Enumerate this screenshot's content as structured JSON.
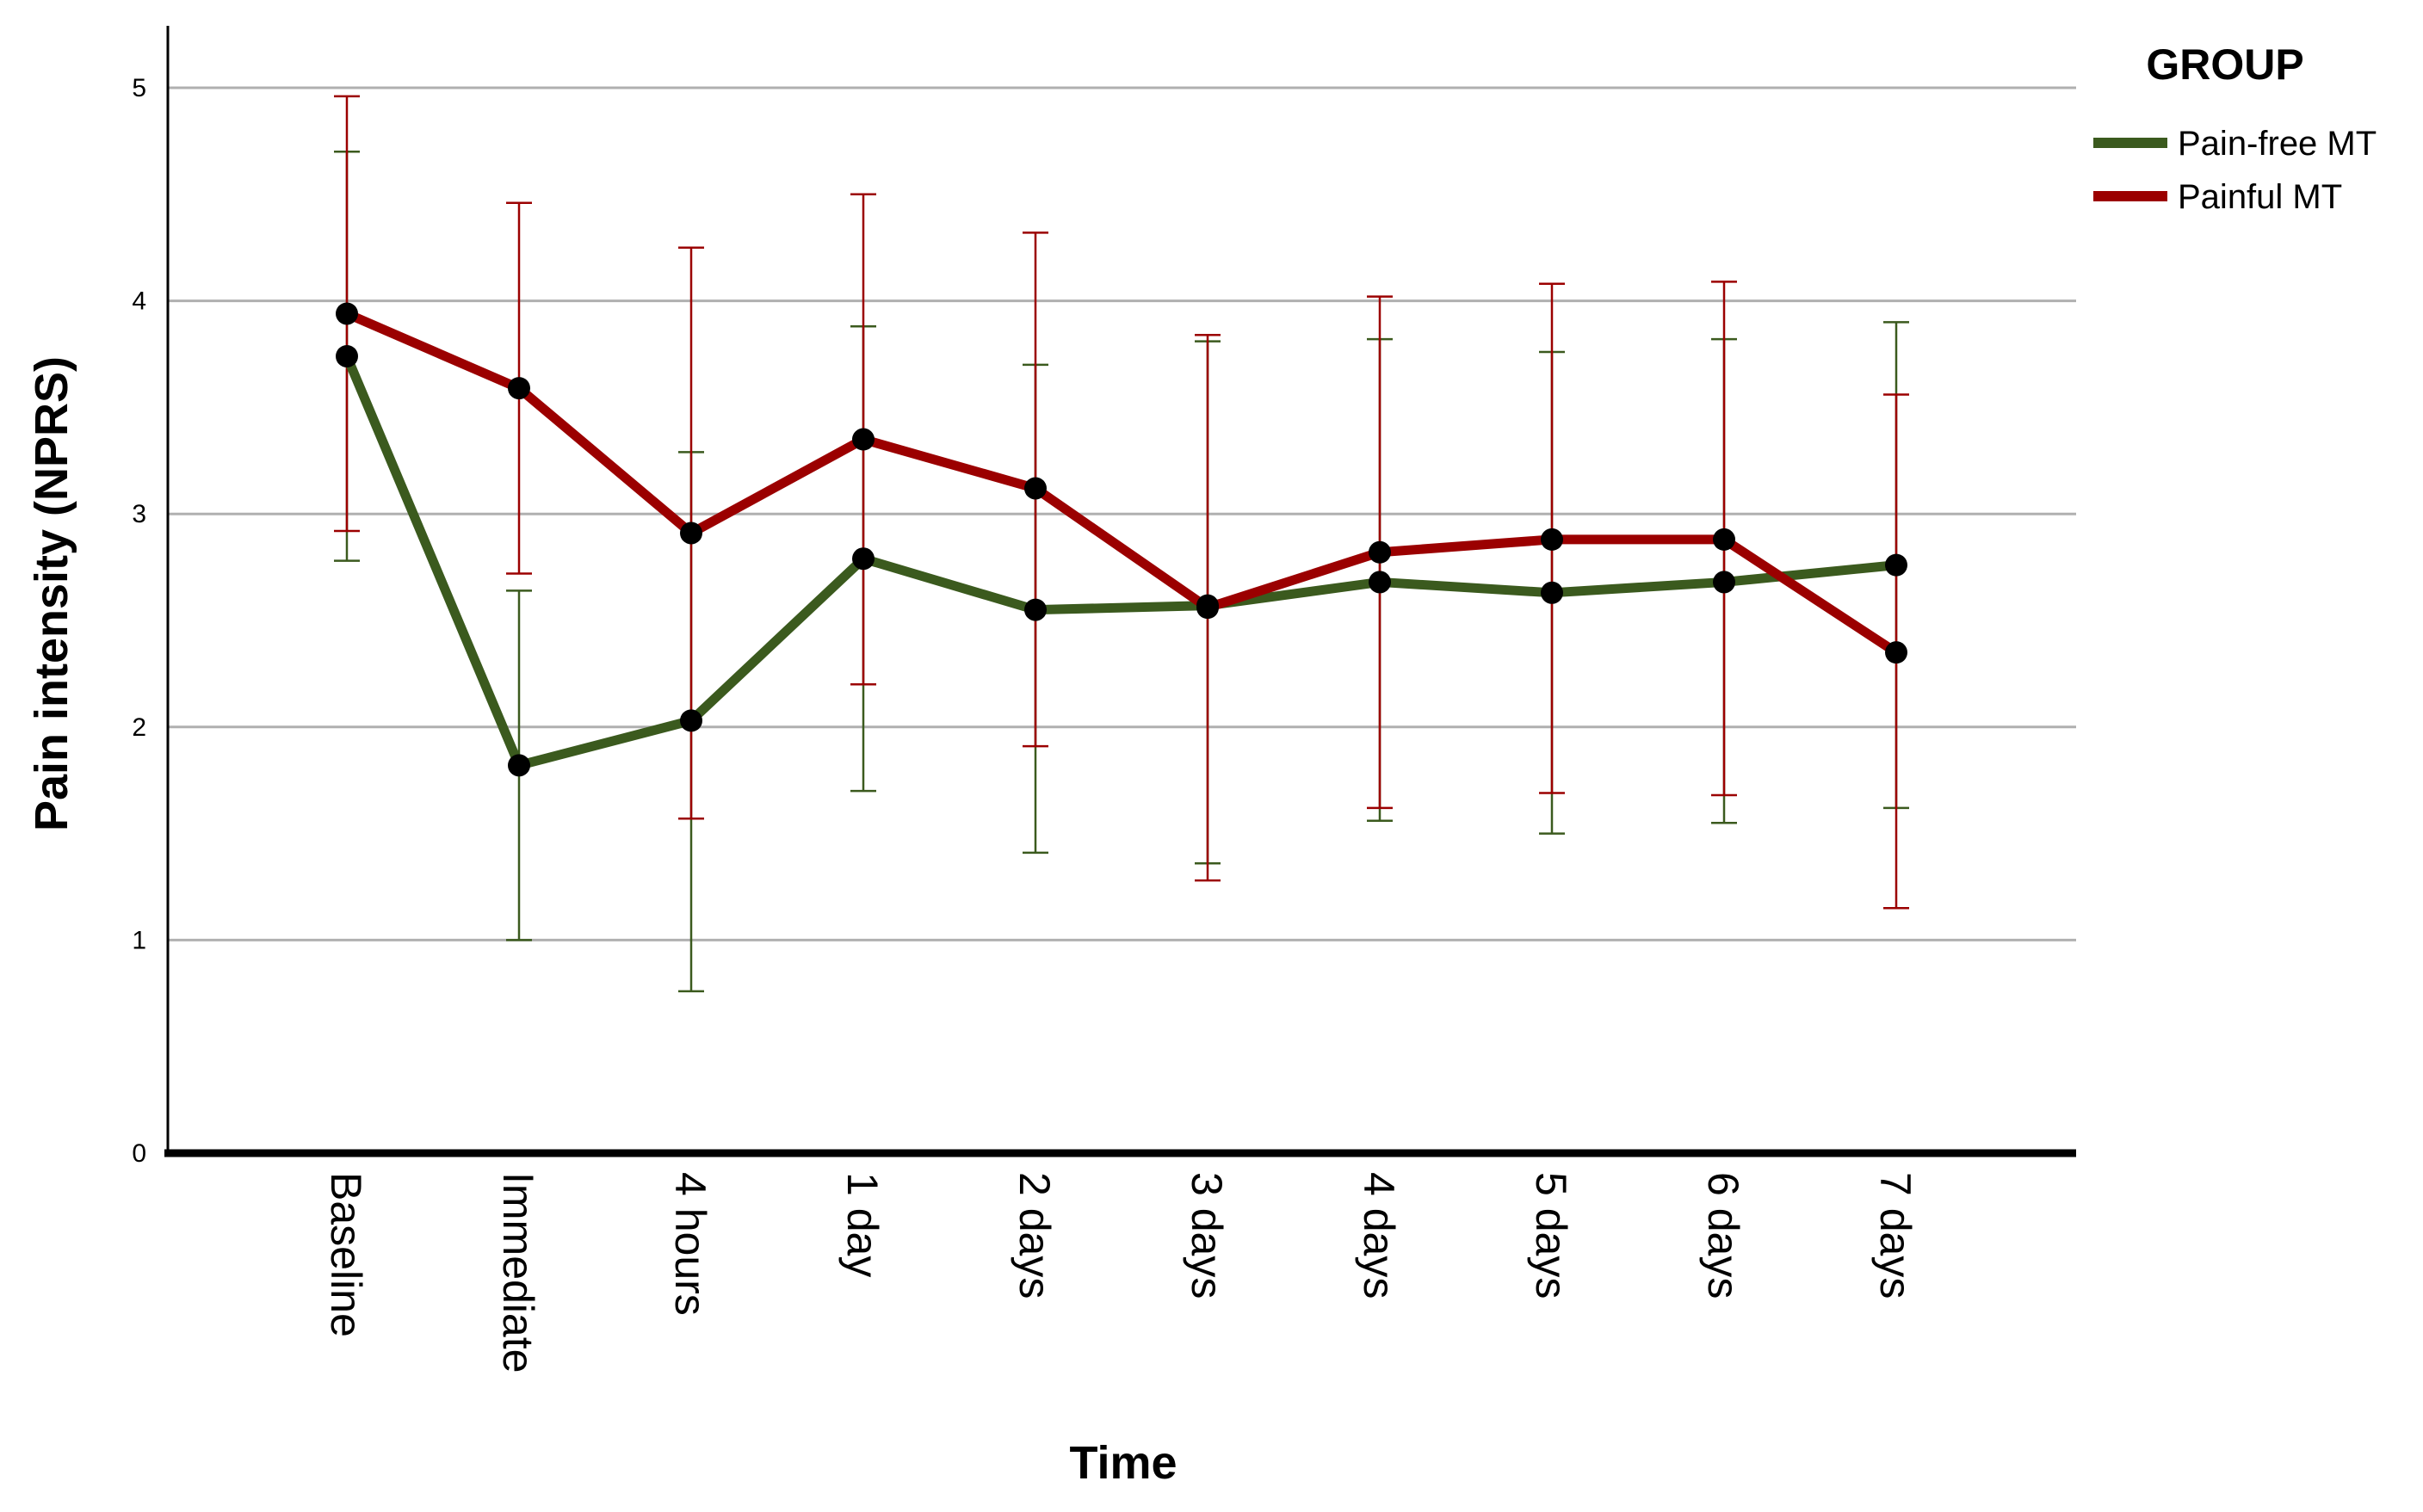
{
  "chart_data": {
    "type": "line",
    "xlabel": "Time",
    "ylabel": "Pain intensity (NPRS)",
    "categories": [
      "Baseline",
      "Immediate",
      "4 hours",
      "1 day",
      "2 days",
      "3 days",
      "4 days",
      "5 days",
      "6 days",
      "7 days"
    ],
    "ylim": [
      0,
      5.2
    ],
    "yticks": [
      0,
      1,
      2,
      3,
      4,
      5
    ],
    "grid": true,
    "error_bars": true,
    "legend": {
      "title": "GROUP",
      "position": "top-right"
    },
    "series": [
      {
        "name": "Pain-free MT",
        "color": "#3b5a1e",
        "values": [
          3.74,
          1.82,
          2.03,
          2.79,
          2.55,
          2.57,
          2.68,
          2.63,
          2.68,
          2.76
        ],
        "lower": [
          2.78,
          1.0,
          0.76,
          1.7,
          1.41,
          1.36,
          1.56,
          1.5,
          1.55,
          1.62
        ],
        "upper": [
          4.7,
          2.64,
          3.29,
          3.88,
          3.7,
          3.81,
          3.82,
          3.76,
          3.82,
          3.9
        ]
      },
      {
        "name": "Painful MT",
        "color": "#9b0000",
        "values": [
          3.94,
          3.59,
          2.91,
          3.35,
          3.12,
          2.56,
          2.82,
          2.88,
          2.88,
          2.35
        ],
        "lower": [
          2.92,
          2.72,
          1.57,
          2.2,
          1.91,
          1.28,
          1.62,
          1.69,
          1.68,
          1.15
        ],
        "upper": [
          4.96,
          4.46,
          4.25,
          4.5,
          4.32,
          3.84,
          4.02,
          4.08,
          4.09,
          3.56
        ]
      }
    ]
  }
}
